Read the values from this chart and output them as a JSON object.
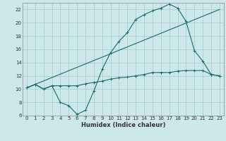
{
  "xlabel": "Humidex (Indice chaleur)",
  "background_color": "#cce8e8",
  "grid_color": "#aacfcf",
  "line_color": "#1a6b6b",
  "xlim": [
    -0.5,
    23.5
  ],
  "ylim": [
    6,
    23
  ],
  "xticks": [
    0,
    1,
    2,
    3,
    4,
    5,
    6,
    7,
    8,
    9,
    10,
    11,
    12,
    13,
    14,
    15,
    16,
    17,
    18,
    19,
    20,
    21,
    22,
    23
  ],
  "yticks": [
    6,
    8,
    10,
    12,
    14,
    16,
    18,
    20,
    22
  ],
  "series1_x": [
    0,
    1,
    2,
    3,
    4,
    5,
    6,
    7,
    8,
    9,
    10,
    11,
    12,
    13,
    14,
    15,
    16,
    17,
    18,
    19,
    20,
    21,
    22,
    23
  ],
  "series1_y": [
    10.2,
    10.7,
    10.0,
    10.5,
    8.0,
    7.5,
    6.2,
    6.8,
    9.7,
    13.0,
    15.5,
    17.2,
    18.5,
    20.5,
    21.2,
    21.8,
    22.2,
    22.8,
    22.2,
    20.2,
    15.8,
    14.2,
    12.2,
    12.0
  ],
  "series2_x": [
    0,
    1,
    2,
    3,
    4,
    5,
    6,
    7,
    8,
    9,
    10,
    11,
    12,
    13,
    14,
    15,
    16,
    17,
    18,
    19,
    20,
    21,
    22,
    23
  ],
  "series2_y": [
    10.2,
    10.7,
    10.0,
    10.5,
    10.5,
    10.5,
    10.5,
    10.8,
    11.0,
    11.2,
    11.5,
    11.7,
    11.8,
    12.0,
    12.2,
    12.5,
    12.5,
    12.5,
    12.7,
    12.8,
    12.8,
    12.8,
    12.2,
    12.0
  ],
  "series3_x": [
    0,
    23
  ],
  "series3_y": [
    10.2,
    22.0
  ],
  "tick_fontsize": 5,
  "xlabel_fontsize": 6
}
